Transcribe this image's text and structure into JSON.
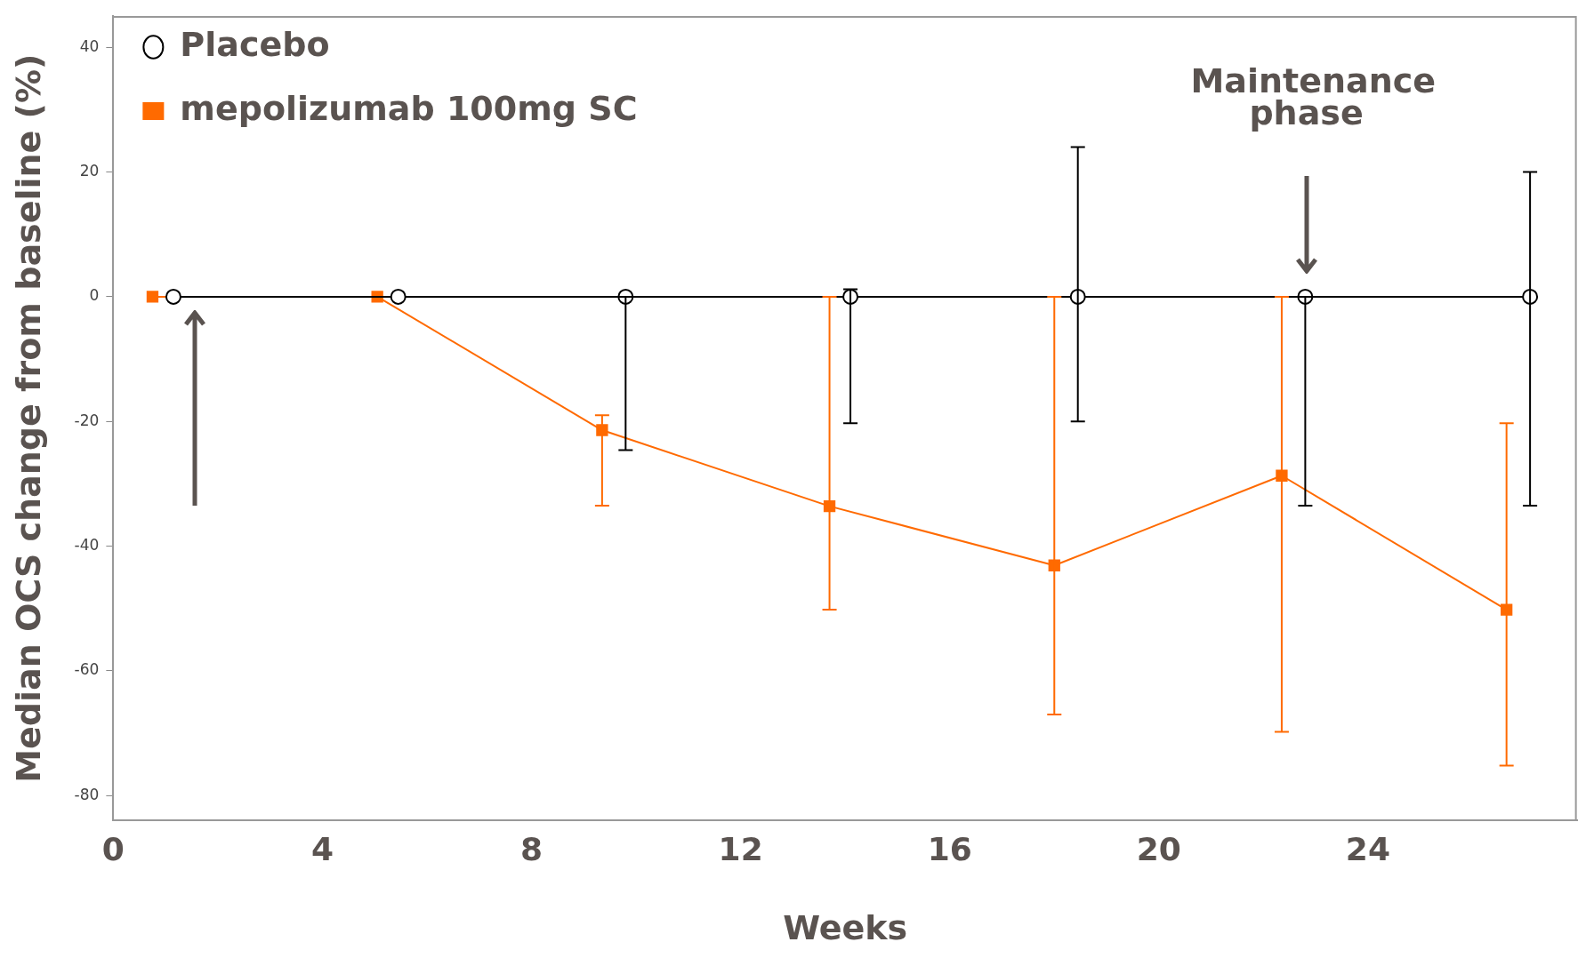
{
  "chart_data": {
    "type": "line",
    "xlabel": "Weeks",
    "ylabel": "Median OCS change from baseline (%)",
    "xlim": [
      0,
      28
    ],
    "xticks": [
      0,
      4,
      8,
      12,
      16,
      20,
      24
    ],
    "ylim": [
      -84,
      45
    ],
    "yticks": [
      -80,
      -60,
      -40,
      -20,
      0,
      20,
      40
    ],
    "grid": false,
    "legend": "top left",
    "line_style": "solid",
    "series": [
      {
        "name": "Placebo",
        "color": "#000000",
        "marker": "circle",
        "x": [
          1.15,
          5.45,
          9.8,
          14.1,
          18.45,
          22.8,
          27.1
        ],
        "values": [
          0,
          0,
          0,
          0,
          0,
          0,
          0
        ],
        "errors": [
          null,
          null,
          [
            -24.6,
            0
          ],
          [
            -20.3,
            1.2
          ],
          [
            -20,
            24
          ],
          [
            -33.5,
            0
          ],
          [
            -33.5,
            20
          ]
        ]
      },
      {
        "name": "mepolizumab 100mg SC",
        "color": "#ff6a00",
        "marker": "square",
        "x": [
          0.75,
          5.05,
          9.35,
          13.7,
          18.0,
          22.35,
          26.65
        ],
        "values": [
          0,
          0,
          -21.4,
          -33.6,
          -43.1,
          -28.7,
          -50.2
        ],
        "errors": [
          null,
          null,
          [
            -33.5,
            -19
          ],
          [
            -50.2,
            0
          ],
          [
            -67,
            0
          ],
          [
            -69.8,
            0
          ],
          [
            -75.2,
            -20.3
          ]
        ]
      }
    ],
    "annotations": [
      "Maintenance phase"
    ]
  }
}
